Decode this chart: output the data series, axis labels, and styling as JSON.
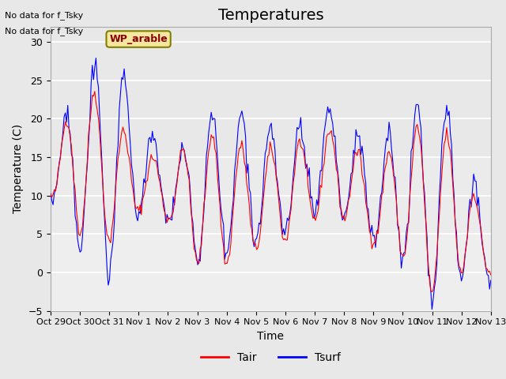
{
  "title": "Temperatures",
  "xlabel": "Time",
  "ylabel": "Temperature (C)",
  "xlim_days": [
    0,
    15
  ],
  "ylim": [
    -5,
    32
  ],
  "yticks": [
    -5,
    0,
    5,
    10,
    15,
    20,
    25,
    30
  ],
  "xtick_labels": [
    "Oct 29",
    "Oct 30",
    "Oct 31",
    "Nov 1",
    "Nov 2",
    "Nov 3",
    "Nov 4",
    "Nov 5",
    "Nov 6",
    "Nov 7",
    "Nov 8",
    "Nov 9",
    "Nov 10",
    "Nov 11",
    "Nov 12",
    "Nov 13"
  ],
  "tair_color": "#ff0000",
  "tsurf_color": "#0000ff",
  "annotation_text": "WP_arable",
  "no_data_text1": "No data for f_Tsky",
  "no_data_text2": "No data for f_Tsky",
  "legend_tair": "Tair",
  "legend_tsurf": "Tsurf",
  "bg_color": "#e8e8e8",
  "plot_bg_color": "#f0f0f0",
  "grid_color": "#ffffff",
  "title_fontsize": 14,
  "axis_fontsize": 10,
  "tick_fontsize": 9
}
